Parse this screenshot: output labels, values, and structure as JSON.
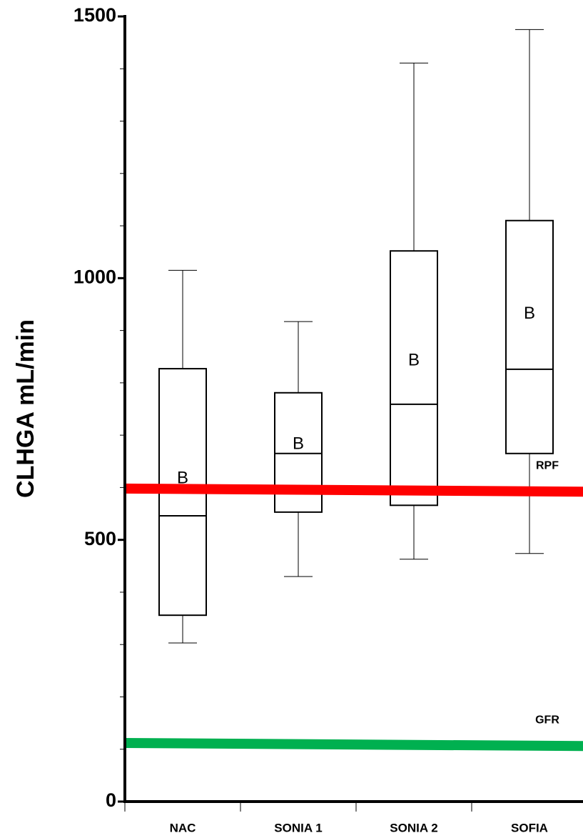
{
  "chart_data": {
    "type": "box",
    "y_label": "CLHGA mL/min",
    "categories": [
      "NAC",
      "SONIA 1",
      "SONIA 2",
      "SOFIA"
    ],
    "whisker_low": [
      303,
      430,
      463,
      474
    ],
    "q1": [
      356,
      553,
      566,
      665
    ],
    "median": [
      546,
      665,
      759,
      826
    ],
    "q3": [
      827,
      781,
      1052,
      1110
    ],
    "whisker_high": [
      1015,
      917,
      1411,
      1475
    ],
    "mean_label": "B",
    "means": [
      617,
      682,
      842,
      931
    ],
    "box_color": "#000000",
    "ylim": [
      0,
      1500
    ],
    "yticks": [
      0,
      500,
      1000,
      1500
    ],
    "minor_yticks": [
      100,
      200,
      300,
      400,
      600,
      700,
      800,
      900,
      1100,
      1200,
      1300,
      1400
    ],
    "reference_lines": [
      {
        "name": "RPF",
        "color": "#ff0000",
        "values": [
          598,
          592
        ]
      },
      {
        "name": "GFR",
        "color": "#00b050",
        "values": [
          112,
          106
        ]
      }
    ]
  }
}
